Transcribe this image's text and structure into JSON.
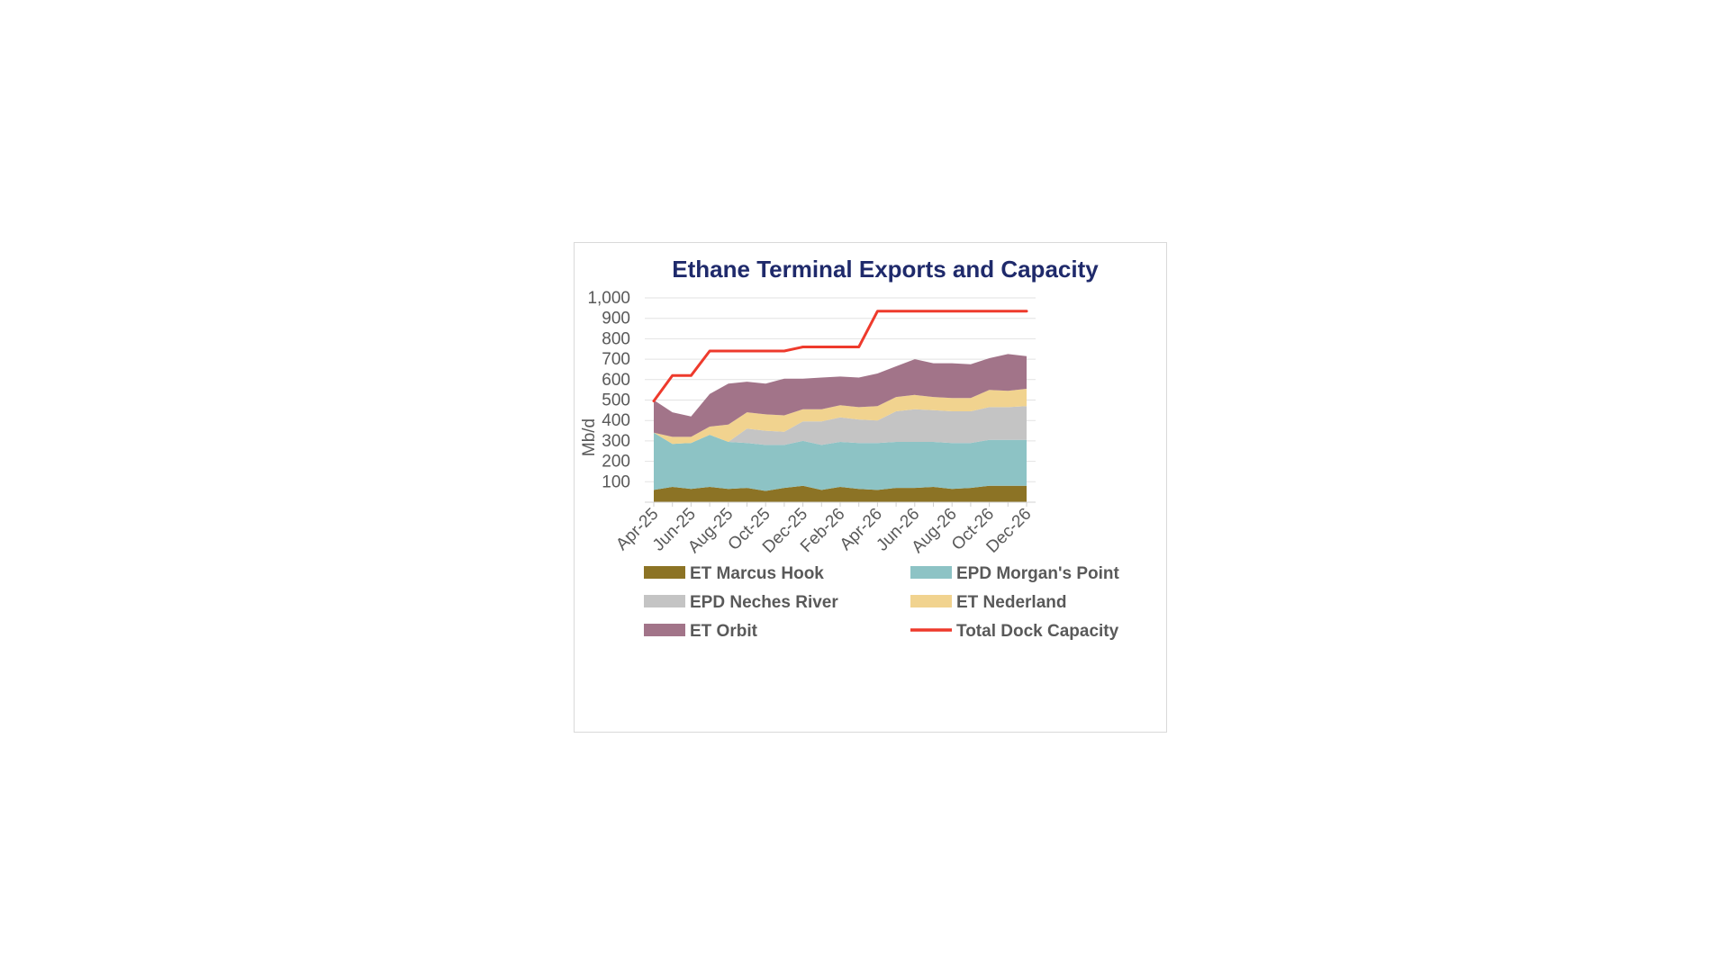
{
  "chart_data": {
    "type": "area",
    "stacked": true,
    "title": "Ethane Terminal Exports and Capacity",
    "ylabel": "Mb/d",
    "xlabel": "",
    "ylim": [
      0,
      1000
    ],
    "yticks": [
      100,
      200,
      300,
      400,
      500,
      600,
      700,
      800,
      900,
      1000
    ],
    "ytick_labels": [
      "100",
      "200",
      "300",
      "400",
      "500",
      "600",
      "700",
      "800",
      "900",
      "1,000"
    ],
    "grid": true,
    "legend_position": "bottom",
    "x": [
      "Apr-25",
      "May-25",
      "Jun-25",
      "Jul-25",
      "Aug-25",
      "Sep-25",
      "Oct-25",
      "Nov-25",
      "Dec-25",
      "Jan-26",
      "Feb-26",
      "Mar-26",
      "Apr-26",
      "May-26",
      "Jun-26",
      "Jul-26",
      "Aug-26",
      "Sep-26",
      "Oct-26",
      "Nov-26",
      "Dec-26"
    ],
    "x_tick_labels": [
      "Apr-25",
      "Jun-25",
      "Aug-25",
      "Oct-25",
      "Dec-25",
      "Feb-26",
      "Apr-26",
      "Jun-26",
      "Aug-26",
      "Oct-26",
      "Dec-26"
    ],
    "series": [
      {
        "name": "ET Marcus Hook",
        "color": "#8c7325",
        "kind": "area",
        "values": [
          60,
          75,
          65,
          75,
          65,
          70,
          55,
          70,
          80,
          60,
          75,
          65,
          60,
          70,
          70,
          75,
          65,
          70,
          80,
          80,
          80
        ]
      },
      {
        "name": "EPD Morgan's Point",
        "color": "#8dc3c5",
        "kind": "area",
        "values": [
          280,
          210,
          225,
          255,
          230,
          220,
          225,
          210,
          220,
          220,
          220,
          225,
          230,
          225,
          225,
          220,
          225,
          220,
          225,
          225,
          225
        ]
      },
      {
        "name": "EPD Neches River",
        "color": "#c4c4c4",
        "kind": "area",
        "values": [
          0,
          0,
          0,
          0,
          0,
          70,
          70,
          65,
          95,
          115,
          120,
          115,
          110,
          150,
          160,
          155,
          155,
          155,
          160,
          160,
          165
        ]
      },
      {
        "name": "ET Nederland",
        "color": "#f1d38f",
        "kind": "area",
        "values": [
          0,
          35,
          30,
          40,
          85,
          80,
          80,
          80,
          60,
          60,
          60,
          60,
          70,
          70,
          70,
          65,
          65,
          65,
          85,
          80,
          85
        ]
      },
      {
        "name": "ET Orbit",
        "color": "#a27489",
        "kind": "area",
        "values": [
          160,
          120,
          100,
          160,
          200,
          150,
          150,
          180,
          150,
          155,
          140,
          145,
          160,
          150,
          175,
          165,
          170,
          165,
          155,
          180,
          160
        ]
      },
      {
        "name": "Total Dock Capacity",
        "color": "#ee3a2c",
        "kind": "line",
        "values": [
          495,
          620,
          620,
          740,
          740,
          740,
          740,
          740,
          760,
          760,
          760,
          760,
          935,
          935,
          935,
          935,
          935,
          935,
          935,
          935,
          935
        ]
      }
    ]
  }
}
